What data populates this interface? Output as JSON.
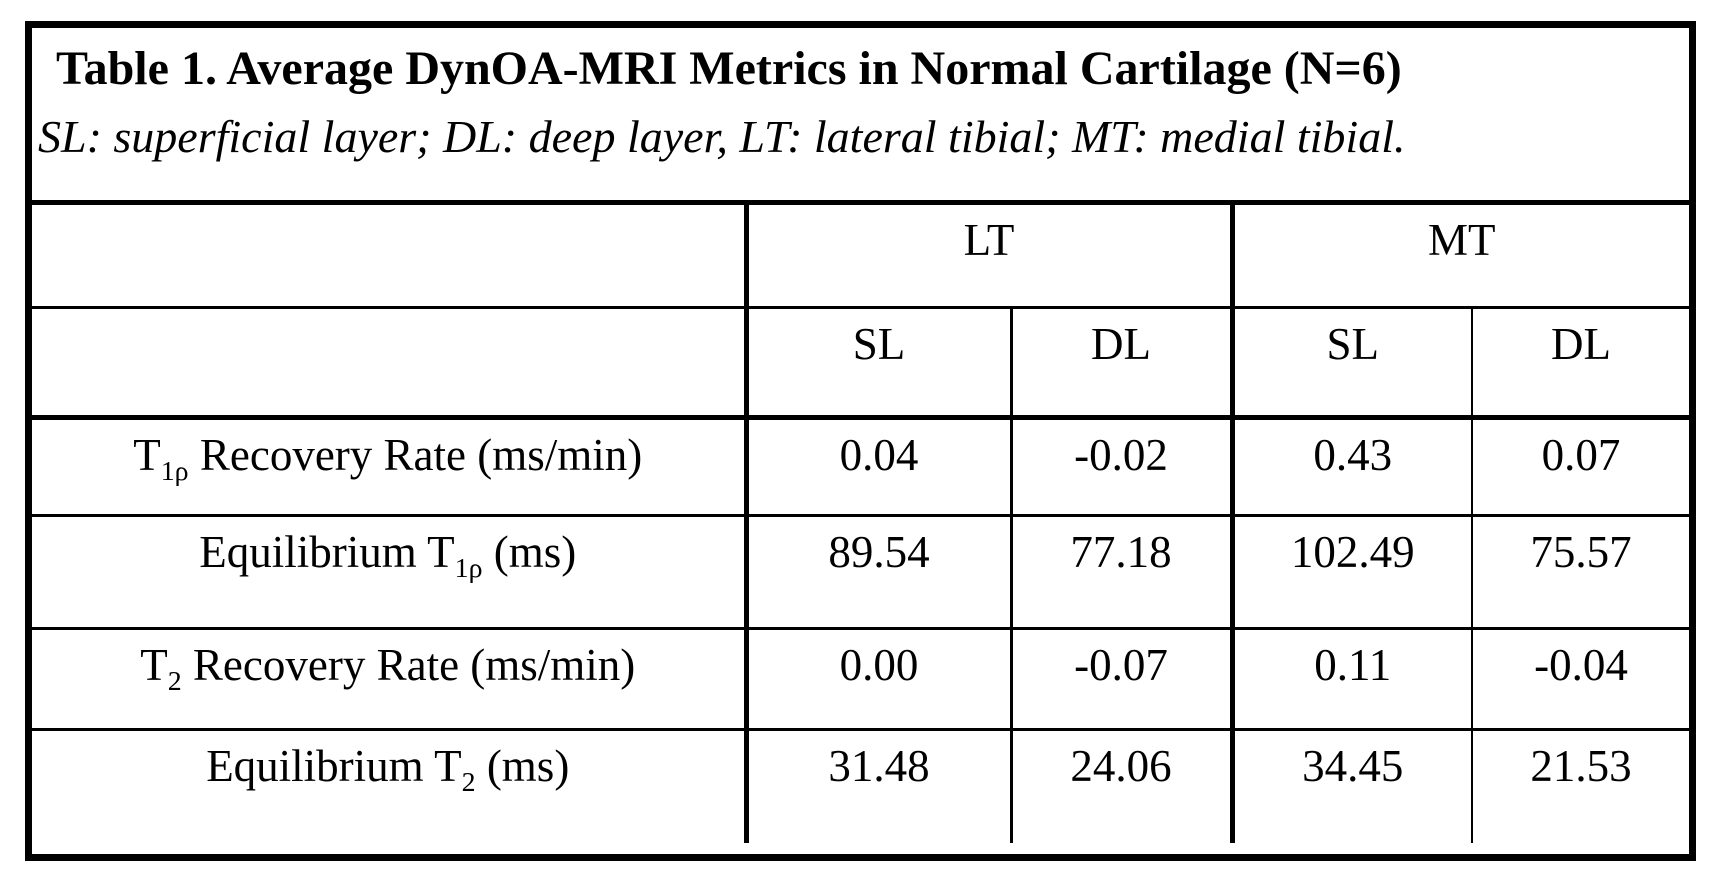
{
  "title": {
    "line1": "Table 1. Average DynOA-MRI Metrics in Normal Cartilage (N=6)",
    "line2": "SL: superficial layer; DL: deep layer, LT: lateral tibial; MT: medial tibial."
  },
  "table": {
    "column_groups": [
      {
        "label": "LT",
        "subcolumns": [
          "SL",
          "DL"
        ]
      },
      {
        "label": "MT",
        "subcolumns": [
          "SL",
          "DL"
        ]
      }
    ],
    "rows": [
      {
        "label_segments": [
          {
            "text": "T"
          },
          {
            "sub": "1ρ"
          },
          {
            "text": " Recovery Rate (ms/min)"
          }
        ],
        "values": [
          "0.04",
          "-0.02",
          "0.43",
          "0.07"
        ]
      },
      {
        "label_segments": [
          {
            "text": "Equilibrium T"
          },
          {
            "sub": "1ρ"
          },
          {
            "text": " (ms)"
          }
        ],
        "values": [
          "89.54",
          "77.18",
          "102.49",
          "75.57"
        ]
      },
      {
        "label_segments": [
          {
            "text": "T"
          },
          {
            "sub": "2"
          },
          {
            "text": " Recovery Rate (ms/min)"
          }
        ],
        "values": [
          "0.00",
          "-0.07",
          "0.11",
          "-0.04"
        ]
      },
      {
        "label_segments": [
          {
            "text": "Equilibrium T"
          },
          {
            "sub": "2"
          },
          {
            "text": " (ms)"
          }
        ],
        "values": [
          "31.48",
          "24.06",
          "34.45",
          "21.53"
        ]
      }
    ]
  },
  "colors": {
    "border": "#000000",
    "text": "#000000",
    "background": "#ffffff"
  }
}
